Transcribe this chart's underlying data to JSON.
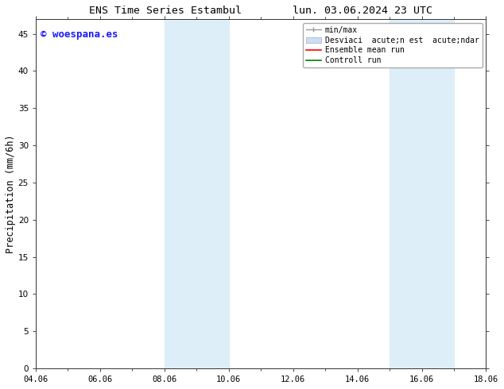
{
  "title_left": "ENS Time Series Estambul",
  "title_right": "lun. 03.06.2024 23 UTC",
  "ylabel": "Precipitation (mm/6h)",
  "xlabel_ticks": [
    "04.06",
    "06.06",
    "08.06",
    "10.06",
    "12.06",
    "14.06",
    "16.06",
    "18.06"
  ],
  "xlim": [
    0,
    14
  ],
  "ylim": [
    0,
    47
  ],
  "yticks": [
    0,
    5,
    10,
    15,
    20,
    25,
    30,
    35,
    40,
    45
  ],
  "shaded_regions": [
    {
      "xstart": 4,
      "xend": 6,
      "color": "#ddeef8"
    },
    {
      "xstart": 11,
      "xend": 13,
      "color": "#ddeef8"
    }
  ],
  "watermark_text": "© woespana.es",
  "watermark_color": "#1a1aff",
  "legend_labels": [
    "min/max",
    "Desviaci  acute;n est  acute;ndar",
    "Ensemble mean run",
    "Controll run"
  ],
  "legend_colors_line": [
    "#aaaaaa",
    "#c8dff5",
    "#ff0000",
    "#008000"
  ],
  "background_color": "#ffffff",
  "plot_bg_color": "#ffffff",
  "tick_label_fontsize": 7.5,
  "axis_label_fontsize": 8.5,
  "title_fontsize": 9.5,
  "legend_fontsize": 7,
  "watermark_fontsize": 9
}
